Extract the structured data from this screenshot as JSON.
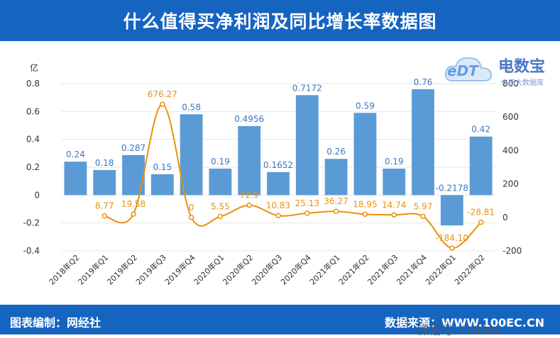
{
  "title": "什么值得买净利润及同比增长率数据图",
  "footer": {
    "left": "图表编制：网经社",
    "right": "数据来源：WWW.100EC.CN",
    "watermark": "微信号: i100ec"
  },
  "logo": {
    "main": "电数宝",
    "sub": "电商大数据库",
    "mark": "eDT"
  },
  "chart_data": {
    "type": "bar",
    "categories": [
      "2018年Q2",
      "2019年Q1",
      "2019年Q2",
      "2019年Q3",
      "2019年Q4",
      "2020年Q1",
      "2020年Q2",
      "2020年Q3",
      "2020年Q4",
      "2021年Q1",
      "2021年Q2",
      "2021年Q3",
      "2021年Q4",
      "2022年Q1",
      "2022年Q2"
    ],
    "series": [
      {
        "type": "bar",
        "axis": "left",
        "values": [
          0.24,
          0.18,
          0.287,
          0.15,
          0.58,
          0.19,
          0.4956,
          0.1652,
          0.7172,
          0.26,
          0.59,
          0.19,
          0.76,
          -0.2178,
          0.42
        ],
        "labels": [
          "0.24",
          "0.18",
          "0.287",
          "0.15",
          "0.58",
          "0.19",
          "0.4956",
          "0.1652",
          "0.7172",
          "0.26",
          "0.59",
          "0.19",
          "0.76",
          "-0.2178",
          "0.42"
        ],
        "color": "#5b9bd5"
      },
      {
        "type": "line",
        "axis": "right",
        "values": [
          null,
          8.77,
          19.58,
          676.27,
          0,
          5.55,
          72.9,
          10.83,
          25.13,
          36.27,
          18.95,
          14.74,
          5.97,
          -184.1,
          -28.81
        ],
        "labels": [
          "",
          "8.77",
          "19.58",
          "676.27",
          "0",
          "5.55",
          "72.9",
          "10.83",
          "25.13",
          "36.27",
          "18.95",
          "14.74",
          "5.97",
          "-184.10",
          "-28.81"
        ],
        "color": "#e8920c"
      }
    ],
    "y_left": {
      "unit": "亿",
      "min": -0.4,
      "max": 0.8,
      "ticks": [
        "-0.4",
        "-0.2",
        "0",
        "0.2",
        "0.4",
        "0.6",
        "0.8"
      ]
    },
    "y_right": {
      "unit": "%",
      "min": -200,
      "max": 800,
      "ticks": [
        "-200",
        "0",
        "200",
        "400",
        "600",
        "800"
      ]
    },
    "grid": true
  }
}
